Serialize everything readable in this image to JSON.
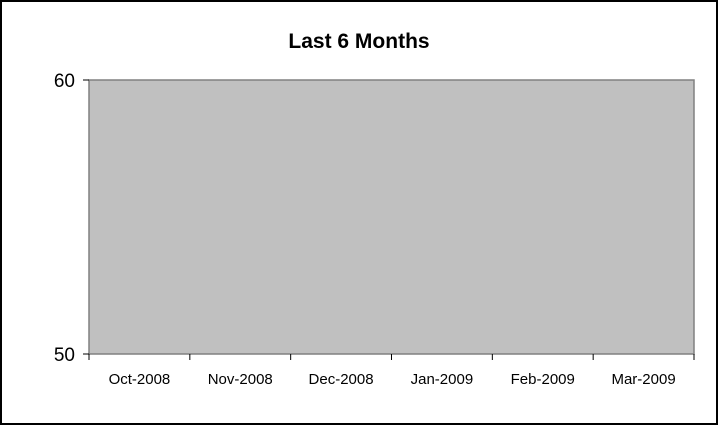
{
  "chart_data": {
    "type": "area",
    "title": "Last 6 Months",
    "categories": [
      "Oct-2008",
      "Nov-2008",
      "Dec-2008",
      "Jan-2009",
      "Feb-2009",
      "Mar-2009"
    ],
    "series": [
      {
        "values": [
          60,
          60,
          60,
          60,
          60,
          60
        ]
      }
    ],
    "xlabel": "",
    "ylabel": "",
    "ylim": [
      50,
      60
    ],
    "yticks": [
      50,
      60
    ],
    "grid": false,
    "legend": "none",
    "colors": {
      "plot_fill": "#c0c0c0",
      "plot_border": "#808080",
      "frame_border": "#000000"
    }
  }
}
